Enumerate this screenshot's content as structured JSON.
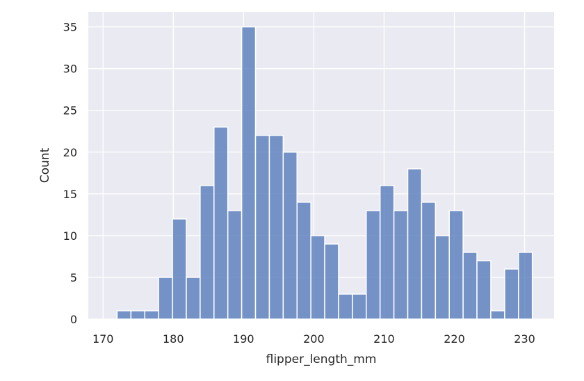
{
  "chart_data": {
    "type": "bar",
    "subtype": "histogram",
    "title": "",
    "xlabel": "flipper_length_mm",
    "ylabel": "Count",
    "bin_start": 172,
    "bin_width": 1.97,
    "counts": [
      1,
      1,
      1,
      5,
      12,
      5,
      16,
      23,
      13,
      35,
      22,
      22,
      20,
      14,
      10,
      9,
      3,
      3,
      13,
      16,
      13,
      18,
      14,
      10,
      13,
      8,
      7,
      1,
      6,
      8
    ],
    "xlim": [
      167.9,
      234.2
    ],
    "ylim": [
      0,
      36.8
    ],
    "xticks": [
      170,
      180,
      190,
      200,
      210,
      220,
      230
    ],
    "yticks": [
      0,
      5,
      10,
      15,
      20,
      25,
      30,
      35
    ],
    "grid": true,
    "background": "#eaeaf2",
    "bar_color": "#5b7fbd"
  }
}
